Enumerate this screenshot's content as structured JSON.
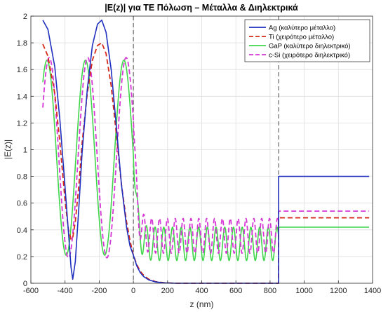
{
  "chart_data": {
    "type": "line",
    "title": "|E(z)| για TE Πόλωση – Μέταλλα & Διηλεκτρικά",
    "xlabel": "z (nm)",
    "ylabel": "|E(z)|",
    "xlim": [
      -600,
      1400
    ],
    "ylim": [
      0,
      2
    ],
    "xticks": [
      -600,
      -400,
      -200,
      0,
      200,
      400,
      600,
      800,
      1000,
      1200,
      1400
    ],
    "yticks": [
      0,
      0.2,
      0.4,
      0.6,
      0.8,
      1,
      1.2,
      1.4,
      1.6,
      1.8,
      2
    ],
    "grid": true,
    "legend_position": "top-right",
    "interfaces_z": [
      0,
      850
    ],
    "series": [
      {
        "name": "Ag (καλύτερο μέταλλο)",
        "color": "#1f2fbf",
        "style": "solid",
        "points": [
          [
            -530,
            1.97
          ],
          [
            -500,
            1.9
          ],
          [
            -460,
            1.62
          ],
          [
            -430,
            1.22
          ],
          [
            -400,
            0.72
          ],
          [
            -380,
            0.38
          ],
          [
            -365,
            0.12
          ],
          [
            -355,
            0.03
          ],
          [
            -340,
            0.16
          ],
          [
            -320,
            0.55
          ],
          [
            -300,
            0.98
          ],
          [
            -270,
            1.45
          ],
          [
            -240,
            1.78
          ],
          [
            -210,
            1.94
          ],
          [
            -185,
            1.97
          ],
          [
            -160,
            1.88
          ],
          [
            -130,
            1.6
          ],
          [
            -100,
            1.18
          ],
          [
            -70,
            0.74
          ],
          [
            -40,
            0.42
          ],
          [
            -20,
            0.28
          ],
          [
            0,
            0.21
          ],
          [
            20,
            0.13
          ],
          [
            40,
            0.08
          ],
          [
            60,
            0.05
          ],
          [
            90,
            0.025
          ],
          [
            130,
            0.01
          ],
          [
            180,
            0.003
          ],
          [
            250,
            0.0
          ],
          [
            850,
            0.0
          ],
          [
            850,
            0.8
          ],
          [
            1380,
            0.8
          ]
        ]
      },
      {
        "name": "Ti (χειρότερο μέταλλο)",
        "color": "#d62a1a",
        "style": "dashed",
        "points": [
          [
            -530,
            1.79
          ],
          [
            -500,
            1.7
          ],
          [
            -460,
            1.42
          ],
          [
            -430,
            1.05
          ],
          [
            -400,
            0.62
          ],
          [
            -380,
            0.4
          ],
          [
            -365,
            0.33
          ],
          [
            -355,
            0.34
          ],
          [
            -340,
            0.46
          ],
          [
            -320,
            0.72
          ],
          [
            -300,
            1.05
          ],
          [
            -270,
            1.42
          ],
          [
            -240,
            1.67
          ],
          [
            -210,
            1.78
          ],
          [
            -185,
            1.8
          ],
          [
            -160,
            1.72
          ],
          [
            -130,
            1.48
          ],
          [
            -100,
            1.12
          ],
          [
            -70,
            0.74
          ],
          [
            -40,
            0.46
          ],
          [
            -20,
            0.32
          ],
          [
            0,
            0.21
          ],
          [
            20,
            0.14
          ],
          [
            40,
            0.09
          ],
          [
            60,
            0.06
          ],
          [
            90,
            0.03
          ],
          [
            130,
            0.012
          ],
          [
            180,
            0.004
          ],
          [
            250,
            0.0
          ],
          [
            850,
            0.0
          ],
          [
            850,
            0.49
          ],
          [
            1380,
            0.49
          ]
        ]
      },
      {
        "name": "GaP (καλύτερο διηλεκτρικό)",
        "color": "#3fd64a",
        "style": "solid",
        "osc_left": {
          "z_start": -530,
          "z_end": 0,
          "center": 0.94,
          "amplitude": 0.73,
          "z_min": -393,
          "period": 225
        },
        "osc_mid": {
          "z_start": 0,
          "z_end": 850,
          "center": 0.295,
          "amplitude": 0.125,
          "period": 51,
          "phase_z": 25
        },
        "right_level": 0.42
      },
      {
        "name": "c-Si (χειρότερο διηλεκτρικό)",
        "color": "#d637d6",
        "style": "dashed",
        "osc_left": {
          "z_start": -530,
          "z_end": 0,
          "center": 0.94,
          "amplitude": 0.75,
          "z_min": -380,
          "period": 225
        },
        "osc_mid": {
          "z_start": 0,
          "z_end": 850,
          "center": 0.355,
          "amplitude": 0.13,
          "period": 46,
          "phase_z": 15
        },
        "right_level": 0.54
      }
    ]
  }
}
